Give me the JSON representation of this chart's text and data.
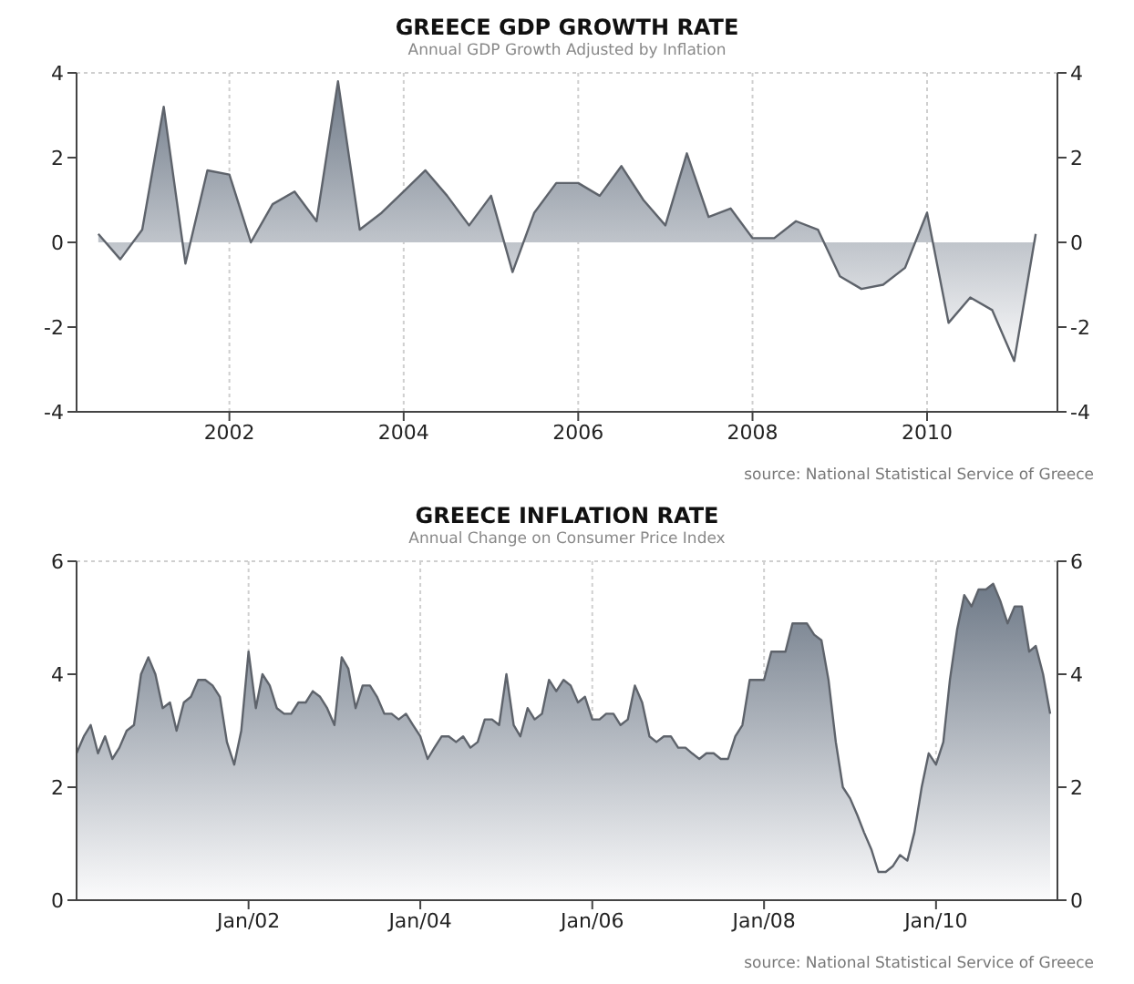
{
  "chart_data": [
    {
      "type": "area",
      "title": "GREECE GDP GROWTH RATE",
      "subtitle": "Annual GDP Growth Adjusted by Inflation",
      "annotations": [
        "source: National Statistical Service of Greece"
      ],
      "x": [
        "2000-07",
        "2000-10",
        "2001-01",
        "2001-04",
        "2001-07",
        "2001-10",
        "2002-01",
        "2002-04",
        "2002-07",
        "2002-10",
        "2003-01",
        "2003-04",
        "2003-07",
        "2003-10",
        "2004-01",
        "2004-04",
        "2004-07",
        "2004-10",
        "2005-01",
        "2005-04",
        "2005-07",
        "2005-10",
        "2006-01",
        "2006-04",
        "2006-07",
        "2006-10",
        "2007-01",
        "2007-04",
        "2007-07",
        "2007-10",
        "2008-01",
        "2008-04",
        "2008-07",
        "2008-10",
        "2009-01",
        "2009-04",
        "2009-07",
        "2009-10",
        "2010-01",
        "2010-04",
        "2010-07",
        "2010-10",
        "2011-01",
        "2011-04"
      ],
      "values": [
        0.2,
        -0.4,
        0.3,
        3.2,
        -0.5,
        1.7,
        1.6,
        0.0,
        0.9,
        1.2,
        0.5,
        3.8,
        0.3,
        0.7,
        1.2,
        1.7,
        1.1,
        0.4,
        1.1,
        -0.7,
        0.7,
        1.4,
        1.4,
        1.1,
        1.8,
        1.0,
        0.4,
        2.1,
        0.6,
        0.8,
        0.1,
        0.1,
        0.5,
        0.3,
        -0.8,
        -1.1,
        -1.0,
        -0.6,
        0.7,
        -1.9,
        -1.3,
        -1.6,
        -2.8,
        0.2
      ],
      "color": "#6f7a88",
      "xlim": [
        "2000-04",
        "2011-07"
      ],
      "xticks": [
        "2002",
        "2004",
        "2006",
        "2008",
        "2010"
      ],
      "ylim": [
        -4,
        4
      ],
      "yticks": [
        -4,
        -2,
        0,
        2,
        4
      ],
      "y2lim": [
        -4,
        4
      ],
      "y2ticks": [
        -4,
        -2,
        0,
        2,
        4
      ],
      "grid": true
    },
    {
      "type": "area",
      "title": "GREECE INFLATION RATE",
      "subtitle": "Annual Change on Consumer Price Index",
      "annotations": [
        "source: National Statistical Service of Greece"
      ],
      "x": [
        "2000-01",
        "2000-02",
        "2000-03",
        "2000-04",
        "2000-05",
        "2000-06",
        "2000-07",
        "2000-08",
        "2000-09",
        "2000-10",
        "2000-11",
        "2000-12",
        "2001-01",
        "2001-02",
        "2001-03",
        "2001-04",
        "2001-05",
        "2001-06",
        "2001-07",
        "2001-08",
        "2001-09",
        "2001-10",
        "2001-11",
        "2001-12",
        "2002-01",
        "2002-02",
        "2002-03",
        "2002-04",
        "2002-05",
        "2002-06",
        "2002-07",
        "2002-08",
        "2002-09",
        "2002-10",
        "2002-11",
        "2002-12",
        "2003-01",
        "2003-02",
        "2003-03",
        "2003-04",
        "2003-05",
        "2003-06",
        "2003-07",
        "2003-08",
        "2003-09",
        "2003-10",
        "2003-11",
        "2003-12",
        "2004-01",
        "2004-02",
        "2004-03",
        "2004-04",
        "2004-05",
        "2004-06",
        "2004-07",
        "2004-08",
        "2004-09",
        "2004-10",
        "2004-11",
        "2004-12",
        "2005-01",
        "2005-02",
        "2005-03",
        "2005-04",
        "2005-05",
        "2005-06",
        "2005-07",
        "2005-08",
        "2005-09",
        "2005-10",
        "2005-11",
        "2005-12",
        "2006-01",
        "2006-02",
        "2006-03",
        "2006-04",
        "2006-05",
        "2006-06",
        "2006-07",
        "2006-08",
        "2006-09",
        "2006-10",
        "2006-11",
        "2006-12",
        "2007-01",
        "2007-02",
        "2007-03",
        "2007-04",
        "2007-05",
        "2007-06",
        "2007-07",
        "2007-08",
        "2007-09",
        "2007-10",
        "2007-11",
        "2007-12",
        "2008-01",
        "2008-02",
        "2008-03",
        "2008-04",
        "2008-05",
        "2008-06",
        "2008-07",
        "2008-08",
        "2008-09",
        "2008-10",
        "2008-11",
        "2008-12",
        "2009-01",
        "2009-02",
        "2009-03",
        "2009-04",
        "2009-05",
        "2009-06",
        "2009-07",
        "2009-08",
        "2009-09",
        "2009-10",
        "2009-11",
        "2009-12",
        "2010-01",
        "2010-02",
        "2010-03",
        "2010-04",
        "2010-05",
        "2010-06",
        "2010-07",
        "2010-08",
        "2010-09",
        "2010-10",
        "2010-11",
        "2010-12",
        "2011-01",
        "2011-02",
        "2011-03",
        "2011-04",
        "2011-05"
      ],
      "values": [
        2.6,
        2.9,
        3.1,
        2.6,
        2.9,
        2.5,
        2.7,
        3.0,
        3.1,
        4.0,
        4.3,
        4.0,
        3.4,
        3.5,
        3.0,
        3.5,
        3.6,
        3.9,
        3.9,
        3.8,
        3.6,
        2.8,
        2.4,
        3.0,
        4.4,
        3.4,
        4.0,
        3.8,
        3.4,
        3.3,
        3.3,
        3.5,
        3.5,
        3.7,
        3.6,
        3.4,
        3.1,
        4.3,
        4.1,
        3.4,
        3.8,
        3.8,
        3.6,
        3.3,
        3.3,
        3.2,
        3.3,
        3.1,
        2.9,
        2.5,
        2.7,
        2.9,
        2.9,
        2.8,
        2.9,
        2.7,
        2.8,
        3.2,
        3.2,
        3.1,
        4.0,
        3.1,
        2.9,
        3.4,
        3.2,
        3.3,
        3.9,
        3.7,
        3.9,
        3.8,
        3.5,
        3.6,
        3.2,
        3.2,
        3.3,
        3.3,
        3.1,
        3.2,
        3.8,
        3.5,
        2.9,
        2.8,
        2.9,
        2.9,
        2.7,
        2.7,
        2.6,
        2.5,
        2.6,
        2.6,
        2.5,
        2.5,
        2.9,
        3.1,
        3.9,
        3.9,
        3.9,
        4.4,
        4.4,
        4.4,
        4.9,
        4.9,
        4.9,
        4.7,
        4.6,
        3.9,
        2.8,
        2.0,
        1.8,
        1.5,
        1.2,
        0.9,
        0.5,
        0.5,
        0.6,
        0.8,
        0.7,
        1.2,
        2.0,
        2.6,
        2.4,
        2.8,
        3.9,
        4.8,
        5.4,
        5.2,
        5.5,
        5.5,
        5.6,
        5.3,
        4.9,
        5.2,
        5.2,
        4.4,
        4.5,
        4.0,
        3.3
      ],
      "color": "#6f7a88",
      "xlim": [
        "2000-01",
        "2011-06"
      ],
      "xticks": [
        {
          "value": "2002-01",
          "label": "Jan/02"
        },
        {
          "value": "2004-01",
          "label": "Jan/04"
        },
        {
          "value": "2006-01",
          "label": "Jan/06"
        },
        {
          "value": "2008-01",
          "label": "Jan/08"
        },
        {
          "value": "2010-01",
          "label": "Jan/10"
        }
      ],
      "ylim": [
        0,
        6
      ],
      "yticks": [
        0,
        2,
        4,
        6
      ],
      "y2lim": [
        0,
        6
      ],
      "y2ticks": [
        0,
        2,
        4,
        6
      ],
      "grid": true
    }
  ]
}
